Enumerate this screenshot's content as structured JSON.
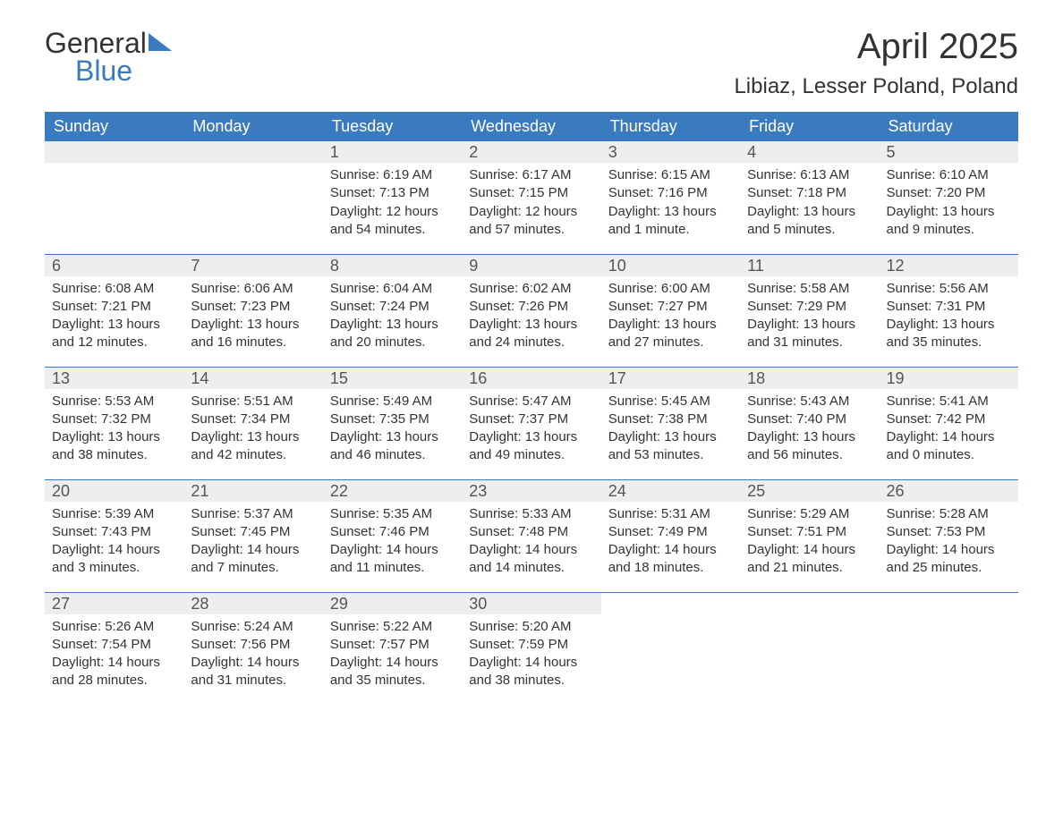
{
  "logo": {
    "general": "General",
    "blue": "Blue"
  },
  "title": "April 2025",
  "subtitle": "Libiaz, Lesser Poland, Poland",
  "colors": {
    "header_bg": "#3a7abf",
    "header_text": "#ffffff",
    "daynum_bg": "#eeeeee",
    "week_border": "#3a7abf",
    "body_text": "#333333",
    "page_bg": "#ffffff"
  },
  "weekdays": [
    "Sunday",
    "Monday",
    "Tuesday",
    "Wednesday",
    "Thursday",
    "Friday",
    "Saturday"
  ],
  "weeks": [
    [
      {
        "blank": true
      },
      {
        "blank": true
      },
      {
        "day": "1",
        "sunrise": "Sunrise: 6:19 AM",
        "sunset": "Sunset: 7:13 PM",
        "daylight": "Daylight: 12 hours and 54 minutes."
      },
      {
        "day": "2",
        "sunrise": "Sunrise: 6:17 AM",
        "sunset": "Sunset: 7:15 PM",
        "daylight": "Daylight: 12 hours and 57 minutes."
      },
      {
        "day": "3",
        "sunrise": "Sunrise: 6:15 AM",
        "sunset": "Sunset: 7:16 PM",
        "daylight": "Daylight: 13 hours and 1 minute."
      },
      {
        "day": "4",
        "sunrise": "Sunrise: 6:13 AM",
        "sunset": "Sunset: 7:18 PM",
        "daylight": "Daylight: 13 hours and 5 minutes."
      },
      {
        "day": "5",
        "sunrise": "Sunrise: 6:10 AM",
        "sunset": "Sunset: 7:20 PM",
        "daylight": "Daylight: 13 hours and 9 minutes."
      }
    ],
    [
      {
        "day": "6",
        "sunrise": "Sunrise: 6:08 AM",
        "sunset": "Sunset: 7:21 PM",
        "daylight": "Daylight: 13 hours and 12 minutes."
      },
      {
        "day": "7",
        "sunrise": "Sunrise: 6:06 AM",
        "sunset": "Sunset: 7:23 PM",
        "daylight": "Daylight: 13 hours and 16 minutes."
      },
      {
        "day": "8",
        "sunrise": "Sunrise: 6:04 AM",
        "sunset": "Sunset: 7:24 PM",
        "daylight": "Daylight: 13 hours and 20 minutes."
      },
      {
        "day": "9",
        "sunrise": "Sunrise: 6:02 AM",
        "sunset": "Sunset: 7:26 PM",
        "daylight": "Daylight: 13 hours and 24 minutes."
      },
      {
        "day": "10",
        "sunrise": "Sunrise: 6:00 AM",
        "sunset": "Sunset: 7:27 PM",
        "daylight": "Daylight: 13 hours and 27 minutes."
      },
      {
        "day": "11",
        "sunrise": "Sunrise: 5:58 AM",
        "sunset": "Sunset: 7:29 PM",
        "daylight": "Daylight: 13 hours and 31 minutes."
      },
      {
        "day": "12",
        "sunrise": "Sunrise: 5:56 AM",
        "sunset": "Sunset: 7:31 PM",
        "daylight": "Daylight: 13 hours and 35 minutes."
      }
    ],
    [
      {
        "day": "13",
        "sunrise": "Sunrise: 5:53 AM",
        "sunset": "Sunset: 7:32 PM",
        "daylight": "Daylight: 13 hours and 38 minutes."
      },
      {
        "day": "14",
        "sunrise": "Sunrise: 5:51 AM",
        "sunset": "Sunset: 7:34 PM",
        "daylight": "Daylight: 13 hours and 42 minutes."
      },
      {
        "day": "15",
        "sunrise": "Sunrise: 5:49 AM",
        "sunset": "Sunset: 7:35 PM",
        "daylight": "Daylight: 13 hours and 46 minutes."
      },
      {
        "day": "16",
        "sunrise": "Sunrise: 5:47 AM",
        "sunset": "Sunset: 7:37 PM",
        "daylight": "Daylight: 13 hours and 49 minutes."
      },
      {
        "day": "17",
        "sunrise": "Sunrise: 5:45 AM",
        "sunset": "Sunset: 7:38 PM",
        "daylight": "Daylight: 13 hours and 53 minutes."
      },
      {
        "day": "18",
        "sunrise": "Sunrise: 5:43 AM",
        "sunset": "Sunset: 7:40 PM",
        "daylight": "Daylight: 13 hours and 56 minutes."
      },
      {
        "day": "19",
        "sunrise": "Sunrise: 5:41 AM",
        "sunset": "Sunset: 7:42 PM",
        "daylight": "Daylight: 14 hours and 0 minutes."
      }
    ],
    [
      {
        "day": "20",
        "sunrise": "Sunrise: 5:39 AM",
        "sunset": "Sunset: 7:43 PM",
        "daylight": "Daylight: 14 hours and 3 minutes."
      },
      {
        "day": "21",
        "sunrise": "Sunrise: 5:37 AM",
        "sunset": "Sunset: 7:45 PM",
        "daylight": "Daylight: 14 hours and 7 minutes."
      },
      {
        "day": "22",
        "sunrise": "Sunrise: 5:35 AM",
        "sunset": "Sunset: 7:46 PM",
        "daylight": "Daylight: 14 hours and 11 minutes."
      },
      {
        "day": "23",
        "sunrise": "Sunrise: 5:33 AM",
        "sunset": "Sunset: 7:48 PM",
        "daylight": "Daylight: 14 hours and 14 minutes."
      },
      {
        "day": "24",
        "sunrise": "Sunrise: 5:31 AM",
        "sunset": "Sunset: 7:49 PM",
        "daylight": "Daylight: 14 hours and 18 minutes."
      },
      {
        "day": "25",
        "sunrise": "Sunrise: 5:29 AM",
        "sunset": "Sunset: 7:51 PM",
        "daylight": "Daylight: 14 hours and 21 minutes."
      },
      {
        "day": "26",
        "sunrise": "Sunrise: 5:28 AM",
        "sunset": "Sunset: 7:53 PM",
        "daylight": "Daylight: 14 hours and 25 minutes."
      }
    ],
    [
      {
        "day": "27",
        "sunrise": "Sunrise: 5:26 AM",
        "sunset": "Sunset: 7:54 PM",
        "daylight": "Daylight: 14 hours and 28 minutes."
      },
      {
        "day": "28",
        "sunrise": "Sunrise: 5:24 AM",
        "sunset": "Sunset: 7:56 PM",
        "daylight": "Daylight: 14 hours and 31 minutes."
      },
      {
        "day": "29",
        "sunrise": "Sunrise: 5:22 AM",
        "sunset": "Sunset: 7:57 PM",
        "daylight": "Daylight: 14 hours and 35 minutes."
      },
      {
        "day": "30",
        "sunrise": "Sunrise: 5:20 AM",
        "sunset": "Sunset: 7:59 PM",
        "daylight": "Daylight: 14 hours and 38 minutes."
      },
      {
        "blank": true
      },
      {
        "blank": true
      },
      {
        "blank": true
      }
    ]
  ]
}
